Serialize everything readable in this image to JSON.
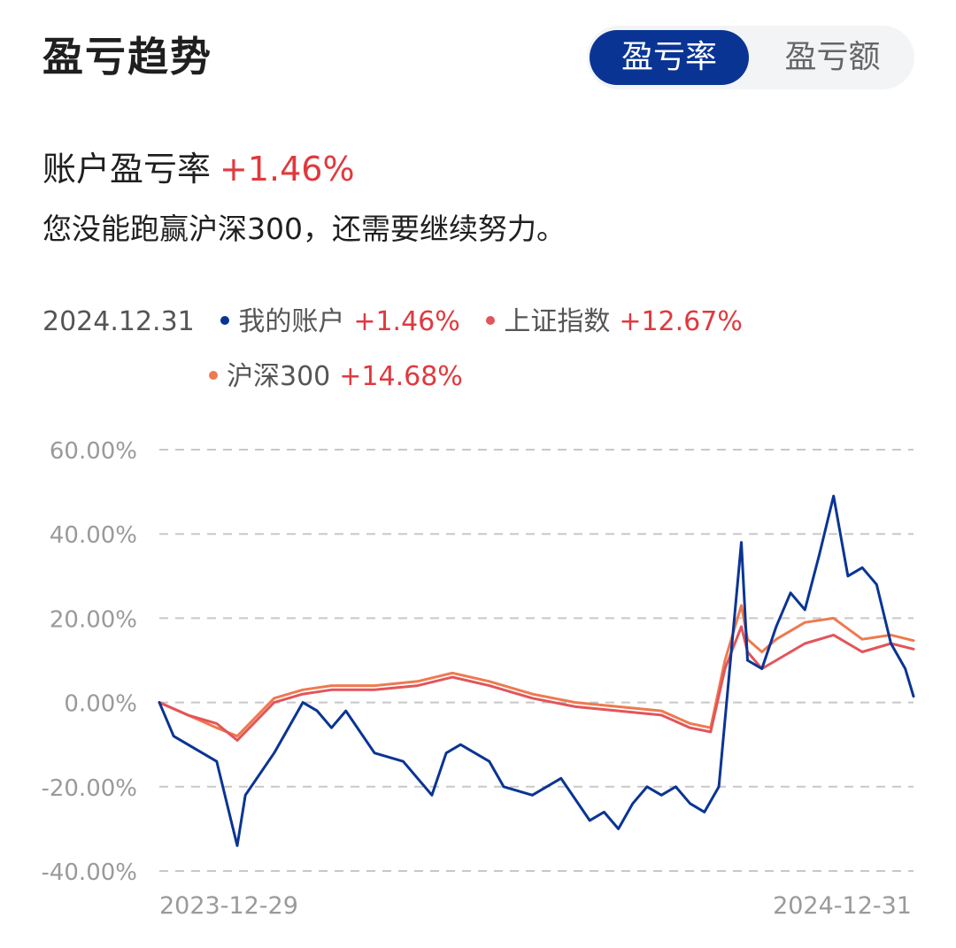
{
  "header": {
    "title": "盈亏趋势"
  },
  "toggle": {
    "options": [
      "盈亏率",
      "盈亏额"
    ],
    "selected": "盈亏率"
  },
  "summary": {
    "label": "账户盈亏率",
    "value": "+1.46%",
    "message": "您没能跑赢沪深300，还需要继续努力。"
  },
  "legend": {
    "date": "2024.12.31",
    "items": [
      {
        "name": "我的账户",
        "value": "+1.46%",
        "color": "#0a3494"
      },
      {
        "name": "上证指数",
        "value": "+12.67%",
        "color": "#e2555a"
      },
      {
        "name": "沪深300",
        "value": "+14.68%",
        "color": "#ee7a4f"
      }
    ]
  },
  "chart_data": {
    "type": "line",
    "x_start": "2023-12-29",
    "x_end": "2024-12-31",
    "xticks": [
      "2023-12-29",
      "2024-12-31"
    ],
    "ylim": [
      -40,
      60
    ],
    "yticks": [
      60,
      40,
      20,
      0,
      -20,
      -40
    ],
    "ytick_labels": [
      "60.00%",
      "40.00%",
      "20.00%",
      "0.00%",
      "-20.00%",
      "-40.00%"
    ],
    "grid": true,
    "series": [
      {
        "name": "我的账户",
        "color": "#0a3494",
        "points": [
          [
            "2023-12-29",
            0
          ],
          [
            "2024-01-05",
            -8
          ],
          [
            "2024-01-12",
            -10
          ],
          [
            "2024-01-19",
            -12
          ],
          [
            "2024-01-26",
            -14
          ],
          [
            "2024-02-02",
            -28
          ],
          [
            "2024-02-05",
            -34
          ],
          [
            "2024-02-09",
            -22
          ],
          [
            "2024-02-23",
            -12
          ],
          [
            "2024-03-01",
            -6
          ],
          [
            "2024-03-08",
            0
          ],
          [
            "2024-03-15",
            -2
          ],
          [
            "2024-03-22",
            -6
          ],
          [
            "2024-03-29",
            -2
          ],
          [
            "2024-04-12",
            -12
          ],
          [
            "2024-04-26",
            -14
          ],
          [
            "2024-05-10",
            -22
          ],
          [
            "2024-05-17",
            -12
          ],
          [
            "2024-05-24",
            -10
          ],
          [
            "2024-05-31",
            -12
          ],
          [
            "2024-06-07",
            -14
          ],
          [
            "2024-06-14",
            -20
          ],
          [
            "2024-06-28",
            -22
          ],
          [
            "2024-07-12",
            -18
          ],
          [
            "2024-07-26",
            -28
          ],
          [
            "2024-08-02",
            -26
          ],
          [
            "2024-08-09",
            -30
          ],
          [
            "2024-08-16",
            -24
          ],
          [
            "2024-08-23",
            -20
          ],
          [
            "2024-08-30",
            -22
          ],
          [
            "2024-09-06",
            -20
          ],
          [
            "2024-09-13",
            -24
          ],
          [
            "2024-09-20",
            -26
          ],
          [
            "2024-09-27",
            -20
          ],
          [
            "2024-10-08",
            38
          ],
          [
            "2024-10-11",
            10
          ],
          [
            "2024-10-18",
            8
          ],
          [
            "2024-10-25",
            18
          ],
          [
            "2024-11-01",
            26
          ],
          [
            "2024-11-08",
            22
          ],
          [
            "2024-11-15",
            35
          ],
          [
            "2024-11-22",
            49
          ],
          [
            "2024-11-29",
            30
          ],
          [
            "2024-12-06",
            32
          ],
          [
            "2024-12-13",
            28
          ],
          [
            "2024-12-20",
            14
          ],
          [
            "2024-12-27",
            8
          ],
          [
            "2024-12-31",
            1.46
          ]
        ]
      },
      {
        "name": "上证指数",
        "color": "#e2555a",
        "points": [
          [
            "2023-12-29",
            0
          ],
          [
            "2024-01-12",
            -3
          ],
          [
            "2024-01-26",
            -5
          ],
          [
            "2024-02-05",
            -9
          ],
          [
            "2024-02-23",
            0
          ],
          [
            "2024-03-08",
            2
          ],
          [
            "2024-03-22",
            3
          ],
          [
            "2024-04-12",
            3
          ],
          [
            "2024-05-03",
            4
          ],
          [
            "2024-05-20",
            6
          ],
          [
            "2024-06-07",
            4
          ],
          [
            "2024-06-28",
            1
          ],
          [
            "2024-07-19",
            -1
          ],
          [
            "2024-08-09",
            -2
          ],
          [
            "2024-08-30",
            -3
          ],
          [
            "2024-09-13",
            -6
          ],
          [
            "2024-09-23",
            -7
          ],
          [
            "2024-09-30",
            8
          ],
          [
            "2024-10-08",
            18
          ],
          [
            "2024-10-11",
            12
          ],
          [
            "2024-10-18",
            8
          ],
          [
            "2024-10-25",
            10
          ],
          [
            "2024-11-08",
            14
          ],
          [
            "2024-11-22",
            16
          ],
          [
            "2024-12-06",
            12
          ],
          [
            "2024-12-20",
            14
          ],
          [
            "2024-12-31",
            12.67
          ]
        ]
      },
      {
        "name": "沪深300",
        "color": "#ee7a4f",
        "points": [
          [
            "2023-12-29",
            0
          ],
          [
            "2024-01-12",
            -3
          ],
          [
            "2024-01-26",
            -6
          ],
          [
            "2024-02-05",
            -8
          ],
          [
            "2024-02-23",
            1
          ],
          [
            "2024-03-08",
            3
          ],
          [
            "2024-03-22",
            4
          ],
          [
            "2024-04-12",
            4
          ],
          [
            "2024-05-03",
            5
          ],
          [
            "2024-05-20",
            7
          ],
          [
            "2024-06-07",
            5
          ],
          [
            "2024-06-28",
            2
          ],
          [
            "2024-07-19",
            0
          ],
          [
            "2024-08-09",
            -1
          ],
          [
            "2024-08-30",
            -2
          ],
          [
            "2024-09-13",
            -5
          ],
          [
            "2024-09-23",
            -6
          ],
          [
            "2024-09-30",
            10
          ],
          [
            "2024-10-08",
            23
          ],
          [
            "2024-10-11",
            15
          ],
          [
            "2024-10-18",
            12
          ],
          [
            "2024-10-25",
            15
          ],
          [
            "2024-11-08",
            19
          ],
          [
            "2024-11-22",
            20
          ],
          [
            "2024-12-06",
            15
          ],
          [
            "2024-12-20",
            16
          ],
          [
            "2024-12-31",
            14.68
          ]
        ]
      }
    ]
  }
}
